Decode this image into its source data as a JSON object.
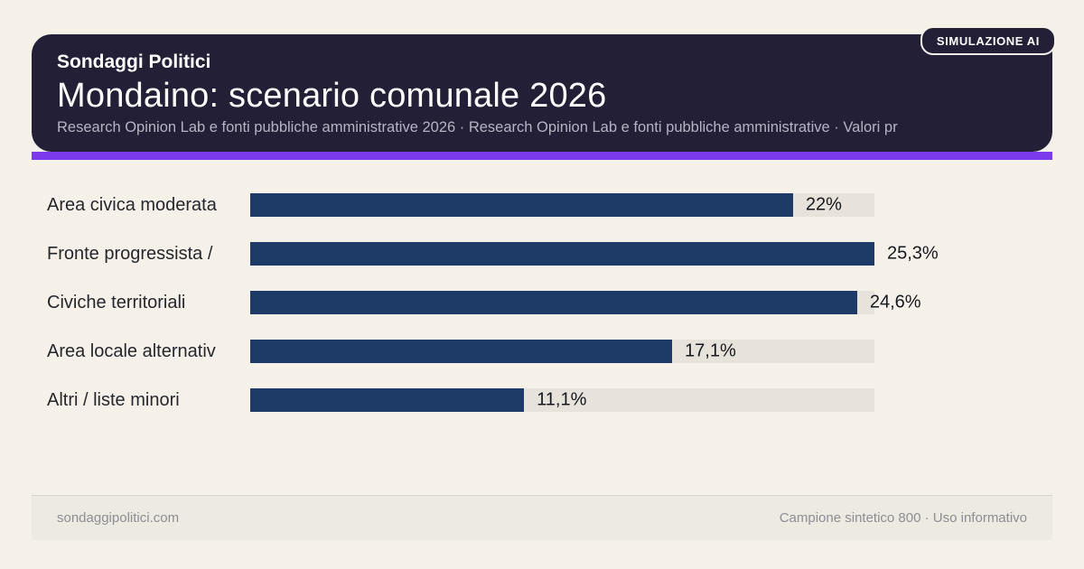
{
  "header": {
    "badge": "SIMULAZIONE AI",
    "eyebrow": "Sondaggi Politici",
    "title": "Mondaino: scenario comunale 2026",
    "subtitle": "Research Opinion Lab e fonti pubbliche amministrative 2026 · Research Opinion Lab e fonti pubbliche amministrative · Valori pr",
    "background_color": "#221f36",
    "accent_color": "#7c3aed"
  },
  "chart_data": {
    "type": "bar",
    "orientation": "horizontal",
    "title": "Mondaino: scenario comunale 2026",
    "categories": [
      "Area civica moderata",
      "Fronte progressista /",
      "Civiche territoriali",
      "Area locale alternativ",
      "Altri / liste minori"
    ],
    "values": [
      22,
      25.3,
      24.6,
      17.1,
      11.1
    ],
    "value_labels": [
      "22%",
      "25,3%",
      "24,6%",
      "17,1%",
      "11,1%"
    ],
    "unit": "%",
    "scale_max": 25.3,
    "bar_color": "#1e3a66",
    "track_color": "#e7e3db",
    "grid": false,
    "legend": false
  },
  "footer": {
    "left": "sondaggipolitici.com",
    "right": "Campione sintetico 800 · Uso informativo"
  }
}
